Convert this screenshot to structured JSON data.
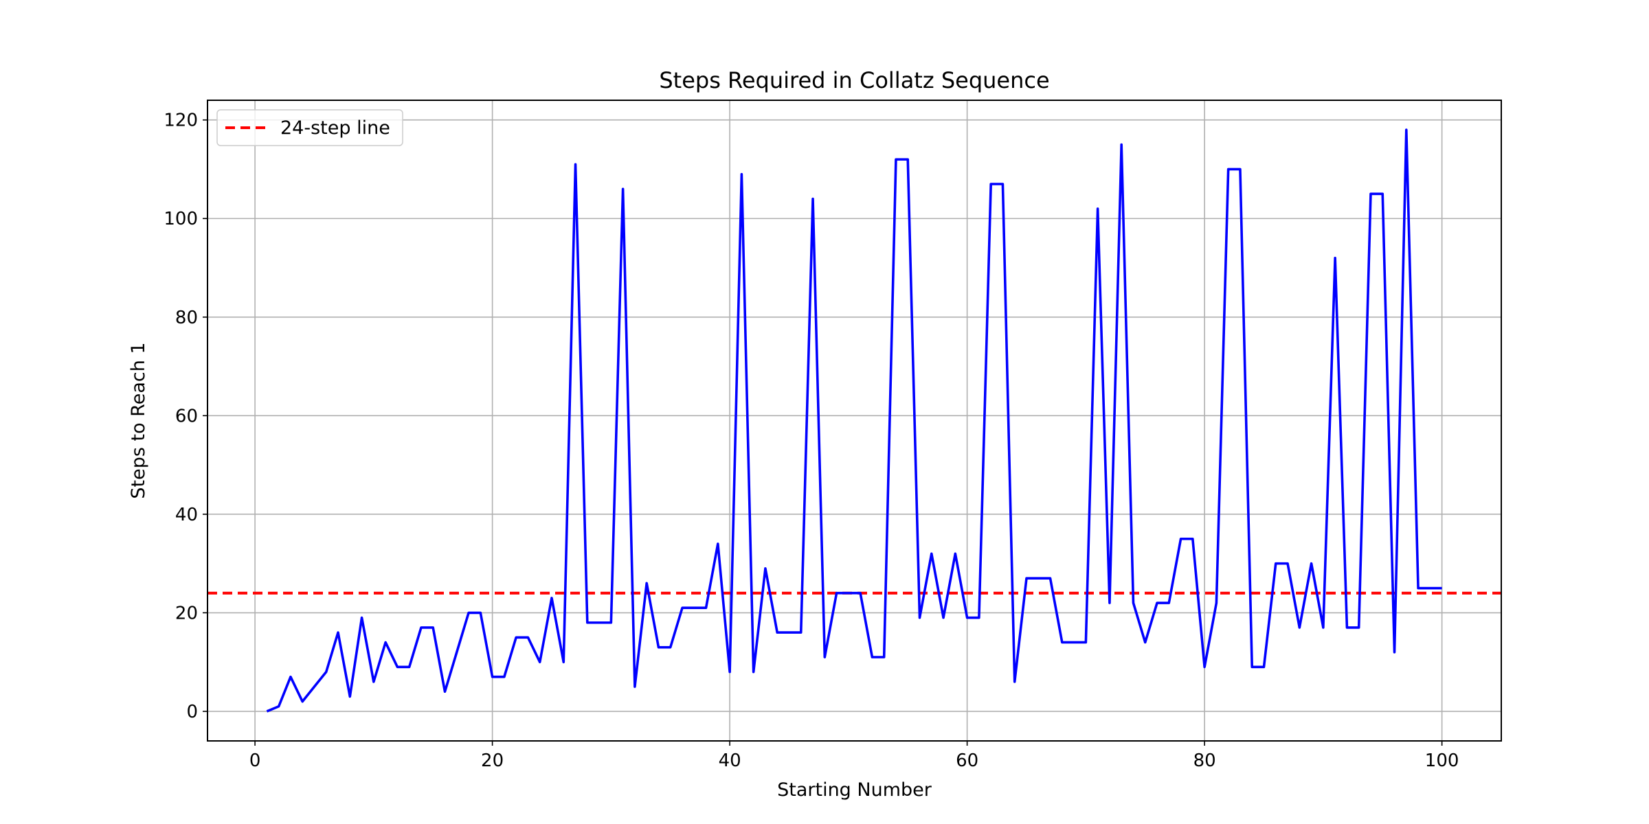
{
  "chart_data": {
    "type": "line",
    "title": "Steps Required in Collatz Sequence",
    "xlabel": "Starting Number",
    "ylabel": "Steps to Reach 1",
    "xlim": [
      -4,
      105
    ],
    "ylim": [
      -6,
      124
    ],
    "xticks": [
      0,
      20,
      40,
      60,
      80,
      100
    ],
    "yticks": [
      0,
      20,
      40,
      60,
      80,
      100,
      120
    ],
    "grid": true,
    "legend_position": "upper-left",
    "series": [
      {
        "color": "#0000ff",
        "x": [
          1,
          2,
          3,
          4,
          5,
          6,
          7,
          8,
          9,
          10,
          11,
          12,
          13,
          14,
          15,
          16,
          17,
          18,
          19,
          20,
          21,
          22,
          23,
          24,
          25,
          26,
          27,
          28,
          29,
          30,
          31,
          32,
          33,
          34,
          35,
          36,
          37,
          38,
          39,
          40,
          41,
          42,
          43,
          44,
          45,
          46,
          47,
          48,
          49,
          50,
          51,
          52,
          53,
          54,
          55,
          56,
          57,
          58,
          59,
          60,
          61,
          62,
          63,
          64,
          65,
          66,
          67,
          68,
          69,
          70,
          71,
          72,
          73,
          74,
          75,
          76,
          77,
          78,
          79,
          80,
          81,
          82,
          83,
          84,
          85,
          86,
          87,
          88,
          89,
          90,
          91,
          92,
          93,
          94,
          95,
          96,
          97,
          98,
          99,
          100
        ],
        "y": [
          0,
          1,
          7,
          2,
          5,
          8,
          16,
          3,
          19,
          6,
          14,
          9,
          9,
          17,
          17,
          4,
          12,
          20,
          20,
          7,
          7,
          15,
          15,
          10,
          23,
          10,
          111,
          18,
          18,
          18,
          106,
          5,
          26,
          13,
          13,
          21,
          21,
          21,
          34,
          8,
          109,
          8,
          29,
          16,
          16,
          16,
          104,
          11,
          24,
          24,
          24,
          11,
          11,
          112,
          112,
          19,
          32,
          19,
          32,
          19,
          19,
          107,
          107,
          6,
          27,
          27,
          27,
          14,
          14,
          14,
          102,
          22,
          115,
          22,
          14,
          22,
          22,
          35,
          35,
          9,
          22,
          110,
          110,
          9,
          9,
          30,
          30,
          17,
          30,
          17,
          92,
          17,
          17,
          105,
          105,
          12,
          118,
          25,
          25,
          25
        ]
      }
    ],
    "reference_line": {
      "name": "24-step line",
      "y": 24,
      "color": "#ff0000",
      "style": "dashed"
    }
  }
}
